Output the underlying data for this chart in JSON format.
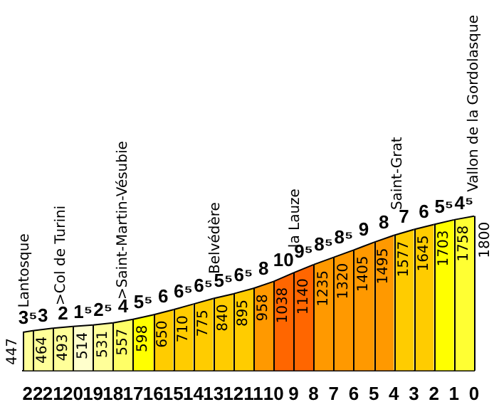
{
  "chart_data": {
    "type": "area",
    "series": [
      {
        "color": "#ffff99",
        "x": [
          22.5,
          22
        ],
        "values": [
          447,
          464
        ],
        "value_labels": [
          "447",
          null
        ]
      },
      {
        "color": "#ffff99",
        "x": [
          22,
          21
        ],
        "values": [
          464,
          493
        ],
        "value_labels": [
          "464",
          null
        ]
      },
      {
        "color": "#ffff99",
        "x": [
          21,
          20
        ],
        "values": [
          493,
          514
        ],
        "value_labels": [
          "493",
          null
        ]
      },
      {
        "color": "#ffffcc",
        "x": [
          20,
          19
        ],
        "values": [
          514,
          531
        ],
        "value_labels": [
          "514",
          null
        ]
      },
      {
        "color": "#ffff99",
        "x": [
          19,
          18
        ],
        "values": [
          531,
          557
        ],
        "value_labels": [
          "531",
          null
        ]
      },
      {
        "color": "#ffff66",
        "x": [
          18,
          17
        ],
        "values": [
          557,
          598
        ],
        "value_labels": [
          "557",
          null
        ]
      },
      {
        "color": "#ffff00",
        "x": [
          17,
          16
        ],
        "values": [
          598,
          650
        ],
        "value_labels": [
          "598",
          null
        ]
      },
      {
        "color": "#ffcc00",
        "x": [
          16,
          15
        ],
        "values": [
          650,
          710
        ],
        "value_labels": [
          "650",
          null
        ]
      },
      {
        "color": "#ffcc00",
        "x": [
          15,
          14
        ],
        "values": [
          710,
          775
        ],
        "value_labels": [
          "710",
          null
        ]
      },
      {
        "color": "#ffcc00",
        "x": [
          14,
          13
        ],
        "values": [
          775,
          840
        ],
        "value_labels": [
          "775",
          null
        ]
      },
      {
        "color": "#ffcc00",
        "x": [
          13,
          12
        ],
        "values": [
          840,
          895
        ],
        "value_labels": [
          "840",
          null
        ]
      },
      {
        "color": "#ffcc00",
        "x": [
          12,
          11
        ],
        "values": [
          895,
          958
        ],
        "value_labels": [
          "895",
          null
        ]
      },
      {
        "color": "#ff9900",
        "x": [
          11,
          10
        ],
        "values": [
          958,
          1038
        ],
        "value_labels": [
          "958",
          null
        ]
      },
      {
        "color": "#ff6600",
        "x": [
          10,
          9
        ],
        "values": [
          1038,
          1140
        ],
        "value_labels": [
          "1038",
          null
        ]
      },
      {
        "color": "#ff6600",
        "x": [
          9,
          8
        ],
        "values": [
          1140,
          1235
        ],
        "value_labels": [
          "1140",
          null
        ]
      },
      {
        "color": "#ff9900",
        "x": [
          8,
          7
        ],
        "values": [
          1235,
          1320
        ],
        "value_labels": [
          "1235",
          null
        ]
      },
      {
        "color": "#ff9900",
        "x": [
          7,
          6
        ],
        "values": [
          1320,
          1405
        ],
        "value_labels": [
          "1320",
          null
        ]
      },
      {
        "color": "#ff9900",
        "x": [
          6,
          5
        ],
        "values": [
          1405,
          1495
        ],
        "value_labels": [
          "1405",
          null
        ]
      },
      {
        "color": "#ff9900",
        "x": [
          5,
          4
        ],
        "values": [
          1495,
          1577
        ],
        "value_labels": [
          "1495",
          null
        ]
      },
      {
        "color": "#ffcc00",
        "x": [
          4,
          3
        ],
        "values": [
          1577,
          1645
        ],
        "value_labels": [
          "1577",
          null
        ]
      },
      {
        "color": "#ffcc00",
        "x": [
          3,
          2
        ],
        "values": [
          1645,
          1703
        ],
        "value_labels": [
          "1645",
          null
        ]
      },
      {
        "color": "#ffff00",
        "x": [
          2,
          1
        ],
        "values": [
          1703,
          1758
        ],
        "value_labels": [
          "1703",
          null
        ]
      },
      {
        "color": "#ffff33",
        "x": [
          1,
          0
        ],
        "values": [
          1758,
          1800
        ],
        "value_labels": [
          "1758",
          "1800"
        ]
      }
    ],
    "marker": "none",
    "grid": "x",
    "xlim": [
      22.5,
      0
    ],
    "xticks": [
      22,
      21,
      20,
      19,
      18,
      17,
      16,
      15,
      14,
      13,
      12,
      11,
      10,
      9,
      8,
      7,
      6,
      5,
      4,
      3,
      2,
      1,
      0
    ],
    "tick_labels": "x",
    "annotations": [
      {
        "text": "3⁵",
        "x": 22.25,
        "y": 464
      },
      {
        "text": "3",
        "x": 21.5,
        "y": 493
      },
      {
        "text": "2",
        "x": 20.5,
        "y": 514
      },
      {
        "text": "1⁵",
        "x": 19.5,
        "y": 531
      },
      {
        "text": "2⁵",
        "x": 18.5,
        "y": 557
      },
      {
        "text": "4",
        "x": 17.5,
        "y": 598
      },
      {
        "text": "5⁵",
        "x": 16.5,
        "y": 650
      },
      {
        "text": "6",
        "x": 15.5,
        "y": 710
      },
      {
        "text": "6⁵",
        "x": 14.5,
        "y": 775
      },
      {
        "text": "6⁵",
        "x": 13.5,
        "y": 840
      },
      {
        "text": "5⁵",
        "x": 12.5,
        "y": 895
      },
      {
        "text": "6⁵",
        "x": 11.5,
        "y": 958
      },
      {
        "text": "8",
        "x": 10.5,
        "y": 1038
      },
      {
        "text": "10",
        "x": 9.5,
        "y": 1140
      },
      {
        "text": "9⁵",
        "x": 8.5,
        "y": 1235
      },
      {
        "text": "8⁵",
        "x": 7.5,
        "y": 1320
      },
      {
        "text": "8⁵",
        "x": 6.5,
        "y": 1405
      },
      {
        "text": "9",
        "x": 5.5,
        "y": 1495
      },
      {
        "text": "8",
        "x": 4.5,
        "y": 1577
      },
      {
        "text": "7",
        "x": 3.5,
        "y": 1645
      },
      {
        "text": "6",
        "x": 2.5,
        "y": 1703
      },
      {
        "text": "5⁵",
        "x": 1.5,
        "y": 1758
      },
      {
        "text": "4⁵",
        "x": 0.5,
        "y": 1800
      },
      {
        "text": "Lantosque",
        "x": 22.4,
        "y": 450
      },
      {
        "text": ">Col de Turini",
        "x": 20.6,
        "y": 480
      },
      {
        "text": ">Saint-Martin-Vésubie",
        "x": 17.5,
        "y": 545
      },
      {
        "text": "Belvédère",
        "x": 12.9,
        "y": 845
      },
      {
        "text": "la Lauze",
        "x": 8.9,
        "y": 1150
      },
      {
        "text": "Saint-Grat",
        "x": 3.8,
        "y": 1590
      },
      {
        "text": "Vallon de la Gordolasque",
        "x": 0,
        "y": 1800
      }
    ]
  }
}
